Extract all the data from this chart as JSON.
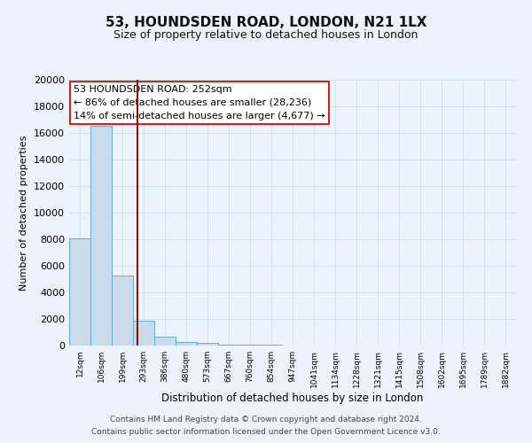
{
  "title": "53, HOUNDSDEN ROAD, LONDON, N21 1LX",
  "subtitle": "Size of property relative to detached houses in London",
  "xlabel": "Distribution of detached houses by size in London",
  "ylabel": "Number of detached properties",
  "categories": [
    "12sqm",
    "106sqm",
    "199sqm",
    "293sqm",
    "386sqm",
    "480sqm",
    "573sqm",
    "667sqm",
    "760sqm",
    "854sqm",
    "947sqm",
    "1041sqm",
    "1134sqm",
    "1228sqm",
    "1321sqm",
    "1415sqm",
    "1508sqm",
    "1602sqm",
    "1695sqm",
    "1789sqm",
    "1882sqm"
  ],
  "values": [
    8100,
    16500,
    5300,
    1850,
    700,
    300,
    200,
    100,
    80,
    50,
    0,
    0,
    0,
    0,
    0,
    0,
    0,
    0,
    0,
    0,
    0
  ],
  "bar_color": "#c9daea",
  "bar_edge_color": "#6aaad4",
  "grid_color": "#d0e0ee",
  "background_color": "#edf3fa",
  "vline_x": 2.72,
  "vline_color": "#8b1010",
  "annotation_text_line1": "53 HOUNDSDEN ROAD: 252sqm",
  "annotation_text_line2": "← 86% of detached houses are smaller (28,236)",
  "annotation_text_line3": "14% of semi-detached houses are larger (4,677) →",
  "annotation_box_facecolor": "#ffffff",
  "annotation_box_edgecolor": "#cc2222",
  "ylim": [
    0,
    20000
  ],
  "yticks": [
    0,
    2000,
    4000,
    6000,
    8000,
    10000,
    12000,
    14000,
    16000,
    18000,
    20000
  ],
  "footer_line1": "Contains HM Land Registry data © Crown copyright and database right 2024.",
  "footer_line2": "Contains public sector information licensed under the Open Government Licence v3.0."
}
